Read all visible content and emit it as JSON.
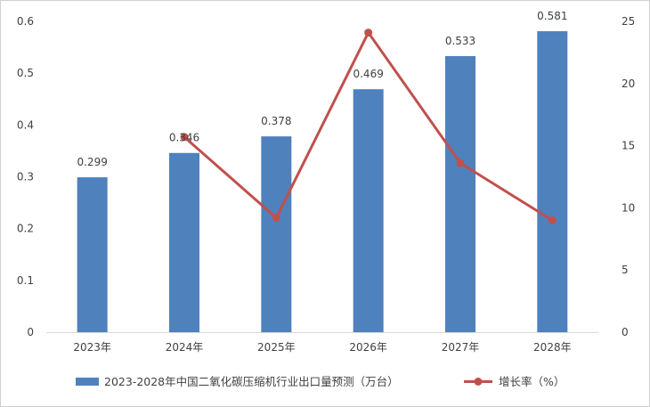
{
  "chart_data": {
    "type": "bar",
    "categories": [
      "2023年",
      "2024年",
      "2025年",
      "2026年",
      "2027年",
      "2028年"
    ],
    "series": [
      {
        "name": "2023-2028年中国二氧化碳压缩机行业出口量预测（万台）",
        "type": "bar",
        "axis": "left",
        "values": [
          0.299,
          0.346,
          0.378,
          0.469,
          0.533,
          0.581
        ],
        "data_labels": [
          "0.299",
          "0.346",
          "0.378",
          "0.469",
          "0.533",
          "0.581"
        ],
        "color": "#4f81bd"
      },
      {
        "name": "增长率（%）",
        "type": "line",
        "axis": "right",
        "values": [
          null,
          15.7,
          9.2,
          24.1,
          13.6,
          9.0
        ],
        "color": "#c0504d"
      }
    ],
    "y_left": {
      "ylim": [
        0,
        0.6
      ],
      "ticks": [
        0,
        0.1,
        0.2,
        0.3,
        0.4,
        0.5,
        0.6
      ],
      "tick_labels": [
        "0",
        "0.1",
        "0.2",
        "0.3",
        "0.4",
        "0.5",
        "0.6"
      ]
    },
    "y_right": {
      "ylim": [
        0,
        25
      ],
      "ticks": [
        0,
        5,
        10,
        15,
        20,
        25
      ],
      "tick_labels": [
        "0",
        "5",
        "10",
        "15",
        "20",
        "25"
      ]
    },
    "grid": false,
    "legend": "bottom"
  }
}
